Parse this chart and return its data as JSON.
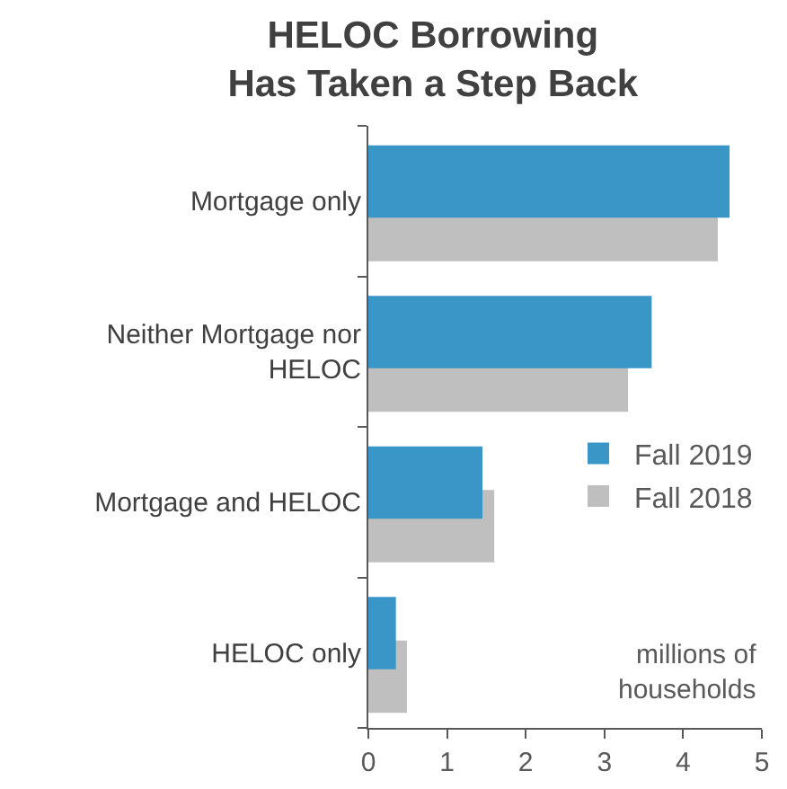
{
  "chart_data": {
    "type": "bar",
    "orientation": "horizontal",
    "title": "HELOC Borrowing\nHas Taken a Step Back",
    "categories": [
      "Mortgage only",
      "Neither Mortgage nor HELOC",
      "Mortgage and HELOC",
      "HELOC only"
    ],
    "series": [
      {
        "name": "Fall 2019",
        "color": "#3b96c8",
        "values": [
          4.59,
          3.6,
          1.45,
          0.35
        ]
      },
      {
        "name": "Fall 2018",
        "color": "#bfbfbf",
        "values": [
          4.44,
          3.3,
          1.6,
          0.49
        ]
      }
    ],
    "xlim": [
      0,
      5
    ],
    "xticks": [
      0,
      1,
      2,
      3,
      4,
      5
    ],
    "grid": false,
    "legend": "right",
    "annotations": [
      "millions of\nhouseholds"
    ]
  }
}
